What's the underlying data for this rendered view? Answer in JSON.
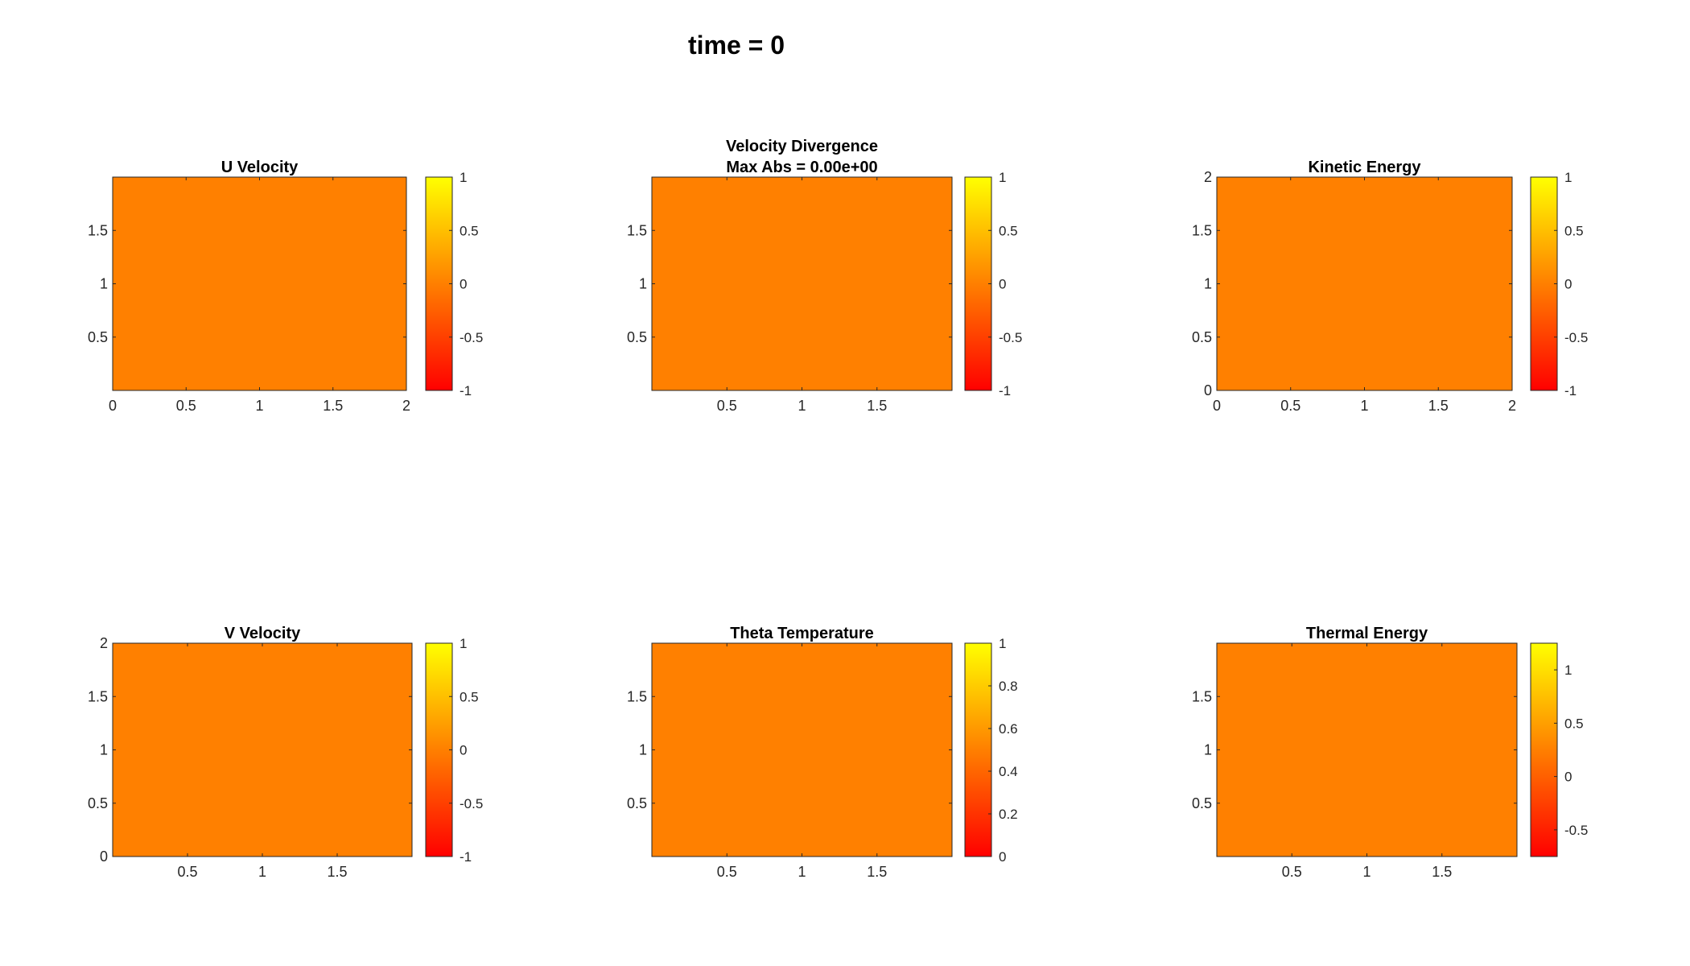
{
  "figure": {
    "title": "time = 0"
  },
  "colors": {
    "field": "#ff8000",
    "cbar_top": "#ffff00",
    "cbar_bottom": "#ff0000"
  },
  "chart_data": [
    {
      "type": "heatmap",
      "title": [
        "U Velocity"
      ],
      "field_value": 0,
      "xlim": [
        0,
        2
      ],
      "ylim": [
        0,
        2
      ],
      "xticks": [
        0,
        0.5,
        1,
        1.5,
        2
      ],
      "xtick_labels": [
        "0",
        "0.5",
        "1",
        "1.5",
        "2"
      ],
      "yticks": [
        0.5,
        1,
        1.5
      ],
      "ytick_labels": [
        "0.5",
        "1",
        "1.5"
      ],
      "colorbar": {
        "clim": [
          -1,
          1
        ],
        "ticks": [
          -1,
          -0.5,
          0,
          0.5,
          1
        ],
        "tick_labels": [
          "-1",
          "-0.5",
          "0",
          "0.5",
          "1"
        ]
      }
    },
    {
      "type": "heatmap",
      "title": [
        "Velocity Divergence",
        "Max Abs = 0.00e+00"
      ],
      "field_value": 0,
      "xlim": [
        0,
        2
      ],
      "ylim": [
        0,
        2
      ],
      "xticks": [
        0.5,
        1,
        1.5
      ],
      "xtick_labels": [
        "0.5",
        "1",
        "1.5"
      ],
      "yticks": [
        0.5,
        1,
        1.5
      ],
      "ytick_labels": [
        "0.5",
        "1",
        "1.5"
      ],
      "colorbar": {
        "clim": [
          -1,
          1
        ],
        "ticks": [
          -1,
          -0.5,
          0,
          0.5,
          1
        ],
        "tick_labels": [
          "-1",
          "-0.5",
          "0",
          "0.5",
          "1"
        ]
      }
    },
    {
      "type": "heatmap",
      "title": [
        "Kinetic Energy"
      ],
      "field_value": 0,
      "xlim": [
        0,
        2
      ],
      "ylim": [
        0,
        2
      ],
      "xticks": [
        0,
        0.5,
        1,
        1.5,
        2
      ],
      "xtick_labels": [
        "0",
        "0.5",
        "1",
        "1.5",
        "2"
      ],
      "yticks": [
        0,
        0.5,
        1,
        1.5,
        2
      ],
      "ytick_labels": [
        "0",
        "0.5",
        "1",
        "1.5",
        "2"
      ],
      "colorbar": {
        "clim": [
          -1,
          1
        ],
        "ticks": [
          -1,
          -0.5,
          0,
          0.5,
          1
        ],
        "tick_labels": [
          "-1",
          "-0.5",
          "0",
          "0.5",
          "1"
        ]
      }
    },
    {
      "type": "heatmap",
      "title": [
        "V Velocity"
      ],
      "field_value": 0,
      "xlim": [
        0,
        2
      ],
      "ylim": [
        0,
        2
      ],
      "xticks": [
        0.5,
        1,
        1.5
      ],
      "xtick_labels": [
        "0.5",
        "1",
        "1.5"
      ],
      "yticks": [
        0,
        0.5,
        1,
        1.5,
        2
      ],
      "ytick_labels": [
        "0",
        "0.5",
        "1",
        "1.5",
        "2"
      ],
      "colorbar": {
        "clim": [
          -1,
          1
        ],
        "ticks": [
          -1,
          -0.5,
          0,
          0.5,
          1
        ],
        "tick_labels": [
          "-1",
          "-0.5",
          "0",
          "0.5",
          "1"
        ]
      }
    },
    {
      "type": "heatmap",
      "title": [
        "Theta Temperature"
      ],
      "field_value": 0.5,
      "xlim": [
        0,
        2
      ],
      "ylim": [
        0,
        2
      ],
      "xticks": [
        0.5,
        1,
        1.5
      ],
      "xtick_labels": [
        "0.5",
        "1",
        "1.5"
      ],
      "yticks": [
        0.5,
        1,
        1.5
      ],
      "ytick_labels": [
        "0.5",
        "1",
        "1.5"
      ],
      "colorbar": {
        "clim": [
          0,
          1
        ],
        "ticks": [
          0,
          0.2,
          0.4,
          0.6,
          0.8,
          1
        ],
        "tick_labels": [
          "0",
          "0.2",
          "0.4",
          "0.6",
          "0.8",
          "1"
        ]
      }
    },
    {
      "type": "heatmap",
      "title": [
        "Thermal Energy"
      ],
      "field_value": 0.25,
      "xlim": [
        0,
        2
      ],
      "ylim": [
        0,
        2
      ],
      "xticks": [
        0.5,
        1,
        1.5
      ],
      "xtick_labels": [
        "0.5",
        "1",
        "1.5"
      ],
      "yticks": [
        0.5,
        1,
        1.5
      ],
      "ytick_labels": [
        "0.5",
        "1",
        "1.5"
      ],
      "colorbar": {
        "clim": [
          -0.75,
          1.25
        ],
        "ticks": [
          -0.5,
          0,
          0.5,
          1
        ],
        "tick_labels": [
          "-0.5",
          "0",
          "0.5",
          "1"
        ]
      }
    }
  ]
}
